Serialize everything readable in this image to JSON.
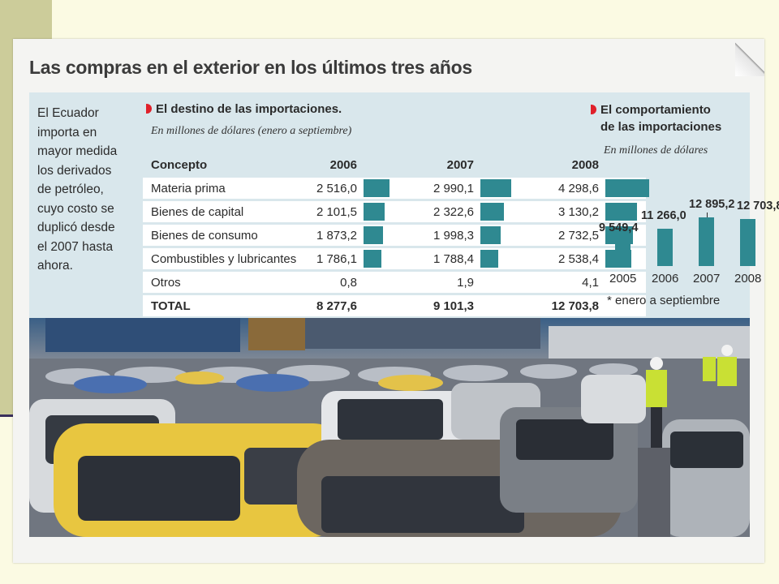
{
  "headline": "Las compras en el exterior en los últimos tres años",
  "intro": "El Ecuador importa en mayor medida los derivados de petróleo, cuyo costo se duplicó desde el 2007 hasta ahora.",
  "destino": {
    "title": "El destino de las importaciones.",
    "subtitle": "En millones de dólares (enero a septiembre)",
    "header": {
      "concept": "Concepto",
      "y2006": "2006",
      "y2007": "2007",
      "y2008": "2008"
    },
    "rows": [
      {
        "label": "Materia prima",
        "v2006": "2 516,0",
        "v2007": "2 990,1",
        "v2008": "4 298,6",
        "n2006": 2516.0,
        "n2007": 2990.1,
        "n2008": 4298.6
      },
      {
        "label": "Bienes de capital",
        "v2006": "2 101,5",
        "v2007": "2 322,6",
        "v2008": "3 130,2",
        "n2006": 2101.5,
        "n2007": 2322.6,
        "n2008": 3130.2
      },
      {
        "label": "Bienes de consumo",
        "v2006": "1 873,2",
        "v2007": "1 998,3",
        "v2008": "2 732,5",
        "n2006": 1873.2,
        "n2007": 1998.3,
        "n2008": 2732.5
      },
      {
        "label": "Combustibles y lubricantes",
        "v2006": "1 786,1",
        "v2007": "1 788,4",
        "v2008": "2 538,4",
        "n2006": 1786.1,
        "n2007": 1788.4,
        "n2008": 2538.4
      },
      {
        "label": "Otros",
        "v2006": "0,8",
        "v2007": "1,9",
        "v2008": "4,1",
        "n2006": 0.8,
        "n2007": 1.9,
        "n2008": 4.1
      }
    ],
    "total": {
      "label": "TOTAL",
      "v2006": "8 277,6",
      "v2007": "9 101,3",
      "v2008": "12 703,8"
    }
  },
  "comportamiento": {
    "title_line1": "El comportamiento",
    "title_line2": "de las importaciones",
    "subtitle": "En millones de dólares",
    "footnote": "* enero a septiembre"
  },
  "chart_data": {
    "type": "bar",
    "categories": [
      "2005",
      "2006",
      "2007",
      "2008"
    ],
    "values": [
      9549.4,
      11266.0,
      12895.2,
      12703.8
    ],
    "labels": [
      "9 549,4",
      "11 266,0",
      "12 895,2",
      "12 703,8"
    ],
    "ylabel": "En millones de dólares",
    "title": "El comportamiento de las importaciones"
  },
  "colors": {
    "accent": "#2f8991",
    "panel": "#d9e7ec",
    "marker": "#e0202a"
  }
}
